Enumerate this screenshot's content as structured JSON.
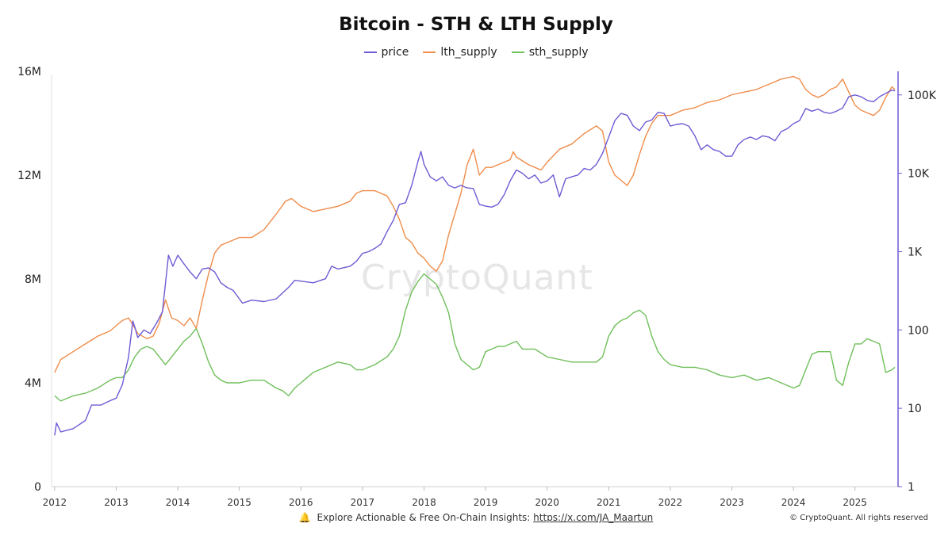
{
  "colors": {
    "price": "#6e5bd4",
    "lth_supply": "#ef8c4a",
    "sth_supply": "#6fbf5a"
  },
  "watermark": "CryptoQuant",
  "footer": {
    "icon": "bell-icon",
    "text": "Explore Actionable & Free On-Chain Insights: ",
    "link": "https://x.com/JA_Maartun"
  },
  "copyright": "© CryptoQuant. All rights reserved",
  "chart_data": {
    "type": "line",
    "title": "Bitcoin - STH & LTH Supply",
    "legend": [
      "price",
      "lth_supply",
      "sth_supply"
    ],
    "legend_position": "top-center",
    "grid": false,
    "x_ticks": [
      "2012",
      "2013",
      "2014",
      "2015",
      "2016",
      "2017",
      "2018",
      "2019",
      "2020",
      "2021",
      "2022",
      "2023",
      "2024",
      "2025"
    ],
    "xlim": [
      2011.95,
      2025.7
    ],
    "left_axis": {
      "ticks": [
        "0",
        "4M",
        "8M",
        "12M",
        "16M"
      ],
      "tick_values": [
        0,
        4000000,
        8000000,
        12000000,
        16000000
      ],
      "ylim": [
        0,
        16000000
      ]
    },
    "right_axis": {
      "scale": "log",
      "ticks": [
        "1",
        "10",
        "100",
        "1K",
        "10K",
        "100K"
      ],
      "tick_values": [
        1,
        10,
        100,
        1000,
        10000,
        100000
      ],
      "ylim": [
        1,
        200000
      ]
    },
    "series": [
      {
        "name": "price",
        "axis": "right",
        "x": [
          2012.0,
          2012.03,
          2012.1,
          2012.3,
          2012.5,
          2012.6,
          2012.75,
          2012.9,
          2013.0,
          2013.1,
          2013.2,
          2013.27,
          2013.3,
          2013.35,
          2013.45,
          2013.55,
          2013.65,
          2013.75,
          2013.85,
          2013.92,
          2014.0,
          2014.1,
          2014.2,
          2014.3,
          2014.4,
          2014.5,
          2014.6,
          2014.7,
          2014.8,
          2014.9,
          2015.0,
          2015.05,
          2015.2,
          2015.4,
          2015.6,
          2015.8,
          2015.9,
          2016.0,
          2016.2,
          2016.4,
          2016.5,
          2016.6,
          2016.8,
          2016.9,
          2017.0,
          2017.1,
          2017.2,
          2017.3,
          2017.4,
          2017.5,
          2017.6,
          2017.7,
          2017.8,
          2017.9,
          2017.95,
          2018.0,
          2018.1,
          2018.2,
          2018.3,
          2018.4,
          2018.5,
          2018.6,
          2018.7,
          2018.8,
          2018.9,
          2019.0,
          2019.1,
          2019.2,
          2019.3,
          2019.4,
          2019.5,
          2019.6,
          2019.7,
          2019.8,
          2019.9,
          2020.0,
          2020.1,
          2020.2,
          2020.3,
          2020.4,
          2020.5,
          2020.6,
          2020.7,
          2020.8,
          2020.9,
          2021.0,
          2021.1,
          2021.2,
          2021.3,
          2021.4,
          2021.5,
          2021.6,
          2021.7,
          2021.8,
          2021.9,
          2022.0,
          2022.1,
          2022.2,
          2022.3,
          2022.4,
          2022.5,
          2022.6,
          2022.7,
          2022.8,
          2022.9,
          2023.0,
          2023.1,
          2023.2,
          2023.3,
          2023.4,
          2023.5,
          2023.6,
          2023.7,
          2023.8,
          2023.9,
          2024.0,
          2024.1,
          2024.2,
          2024.3,
          2024.4,
          2024.5,
          2024.6,
          2024.7,
          2024.8,
          2024.9,
          2025.0,
          2025.1,
          2025.2,
          2025.3,
          2025.4,
          2025.5,
          2025.6,
          2025.65
        ],
        "values": [
          4.5,
          6.5,
          5,
          5.5,
          7,
          11,
          11,
          12.5,
          13.5,
          20,
          45,
          130,
          110,
          80,
          100,
          90,
          120,
          170,
          900,
          650,
          900,
          700,
          550,
          450,
          600,
          620,
          550,
          400,
          350,
          320,
          250,
          220,
          240,
          230,
          250,
          350,
          430,
          420,
          400,
          450,
          650,
          600,
          650,
          750,
          950,
          1000,
          1100,
          1250,
          1800,
          2500,
          4000,
          4200,
          7000,
          14000,
          19000,
          13000,
          9000,
          8000,
          9000,
          7000,
          6500,
          7000,
          6500,
          6400,
          4000,
          3800,
          3700,
          4000,
          5300,
          8000,
          11000,
          10000,
          8500,
          9500,
          7500,
          8000,
          9500,
          5000,
          8500,
          9000,
          9500,
          11500,
          11000,
          13000,
          18000,
          29000,
          47000,
          58000,
          55000,
          40000,
          35000,
          45000,
          48000,
          60000,
          58000,
          40000,
          42000,
          43000,
          40000,
          30000,
          20000,
          23000,
          20000,
          19000,
          16500,
          16500,
          23000,
          27000,
          29000,
          27000,
          30000,
          29000,
          26000,
          34000,
          37000,
          43000,
          47000,
          67000,
          62000,
          66000,
          60000,
          58000,
          62000,
          68000,
          95000,
          100000,
          95000,
          85000,
          82000,
          95000,
          105000,
          115000,
          113000
        ]
      },
      {
        "name": "lth_supply",
        "axis": "left",
        "x": [
          2012.0,
          2012.1,
          2012.3,
          2012.5,
          2012.7,
          2012.9,
          2013.0,
          2013.1,
          2013.2,
          2013.28,
          2013.35,
          2013.5,
          2013.6,
          2013.7,
          2013.8,
          2013.9,
          2014.0,
          2014.1,
          2014.2,
          2014.3,
          2014.4,
          2014.5,
          2014.6,
          2014.7,
          2014.8,
          2014.9,
          2015.0,
          2015.2,
          2015.4,
          2015.6,
          2015.75,
          2015.85,
          2016.0,
          2016.2,
          2016.4,
          2016.6,
          2016.8,
          2016.9,
          2017.0,
          2017.2,
          2017.4,
          2017.5,
          2017.6,
          2017.7,
          2017.8,
          2017.9,
          2018.0,
          2018.1,
          2018.2,
          2018.3,
          2018.4,
          2018.5,
          2018.6,
          2018.7,
          2018.8,
          2018.9,
          2019.0,
          2019.1,
          2019.2,
          2019.3,
          2019.4,
          2019.45,
          2019.5,
          2019.7,
          2019.8,
          2019.9,
          2020.0,
          2020.2,
          2020.4,
          2020.6,
          2020.8,
          2020.9,
          2021.0,
          2021.1,
          2021.2,
          2021.3,
          2021.4,
          2021.5,
          2021.6,
          2021.7,
          2021.8,
          2021.9,
          2022.0,
          2022.2,
          2022.4,
          2022.6,
          2022.8,
          2023.0,
          2023.2,
          2023.4,
          2023.6,
          2023.8,
          2024.0,
          2024.1,
          2024.2,
          2024.3,
          2024.4,
          2024.5,
          2024.6,
          2024.7,
          2024.8,
          2024.9,
          2025.0,
          2025.1,
          2025.2,
          2025.3,
          2025.4,
          2025.5,
          2025.6,
          2025.65
        ],
        "values": [
          4400000,
          4900000,
          5200000,
          5500000,
          5800000,
          6000000,
          6200000,
          6400000,
          6500000,
          6200000,
          5900000,
          5700000,
          5800000,
          6300000,
          7200000,
          6500000,
          6400000,
          6200000,
          6500000,
          6100000,
          7200000,
          8200000,
          9000000,
          9300000,
          9400000,
          9500000,
          9600000,
          9600000,
          9900000,
          10500000,
          11000000,
          11100000,
          10800000,
          10600000,
          10700000,
          10800000,
          11000000,
          11300000,
          11400000,
          11400000,
          11200000,
          10800000,
          10300000,
          9600000,
          9400000,
          9000000,
          8800000,
          8500000,
          8300000,
          8700000,
          9700000,
          10500000,
          11300000,
          12400000,
          13000000,
          12000000,
          12300000,
          12300000,
          12400000,
          12500000,
          12600000,
          12900000,
          12700000,
          12400000,
          12300000,
          12200000,
          12500000,
          13000000,
          13200000,
          13600000,
          13900000,
          13700000,
          12500000,
          12000000,
          11800000,
          11600000,
          12000000,
          12800000,
          13500000,
          14000000,
          14300000,
          14300000,
          14300000,
          14500000,
          14600000,
          14800000,
          14900000,
          15100000,
          15200000,
          15300000,
          15500000,
          15700000,
          15800000,
          15700000,
          15300000,
          15100000,
          15000000,
          15100000,
          15300000,
          15400000,
          15700000,
          15200000,
          14700000,
          14500000,
          14400000,
          14300000,
          14500000,
          15000000,
          15400000,
          15300000
        ]
      },
      {
        "name": "sth_supply",
        "axis": "left",
        "x": [
          2012.0,
          2012.1,
          2012.3,
          2012.5,
          2012.7,
          2012.9,
          2013.0,
          2013.1,
          2013.2,
          2013.3,
          2013.4,
          2013.5,
          2013.6,
          2013.7,
          2013.8,
          2013.9,
          2014.0,
          2014.1,
          2014.2,
          2014.3,
          2014.4,
          2014.5,
          2014.6,
          2014.7,
          2014.8,
          2015.0,
          2015.2,
          2015.4,
          2015.6,
          2015.7,
          2015.8,
          2015.9,
          2016.0,
          2016.2,
          2016.4,
          2016.6,
          2016.8,
          2016.9,
          2017.0,
          2017.2,
          2017.4,
          2017.5,
          2017.6,
          2017.7,
          2017.8,
          2017.9,
          2018.0,
          2018.1,
          2018.2,
          2018.3,
          2018.4,
          2018.5,
          2018.6,
          2018.7,
          2018.8,
          2018.9,
          2019.0,
          2019.1,
          2019.2,
          2019.3,
          2019.4,
          2019.5,
          2019.6,
          2019.8,
          2020.0,
          2020.2,
          2020.4,
          2020.6,
          2020.8,
          2020.9,
          2021.0,
          2021.1,
          2021.2,
          2021.3,
          2021.4,
          2021.5,
          2021.6,
          2021.7,
          2021.8,
          2021.9,
          2022.0,
          2022.2,
          2022.4,
          2022.6,
          2022.8,
          2023.0,
          2023.2,
          2023.4,
          2023.6,
          2023.8,
          2024.0,
          2024.1,
          2024.2,
          2024.3,
          2024.4,
          2024.5,
          2024.6,
          2024.7,
          2024.8,
          2024.9,
          2025.0,
          2025.1,
          2025.2,
          2025.3,
          2025.4,
          2025.5,
          2025.6,
          2025.65
        ],
        "values": [
          3500000,
          3300000,
          3500000,
          3600000,
          3800000,
          4100000,
          4200000,
          4200000,
          4500000,
          5000000,
          5300000,
          5400000,
          5300000,
          5000000,
          4700000,
          5000000,
          5300000,
          5600000,
          5800000,
          6100000,
          5500000,
          4800000,
          4300000,
          4100000,
          4000000,
          4000000,
          4100000,
          4100000,
          3800000,
          3700000,
          3500000,
          3800000,
          4000000,
          4400000,
          4600000,
          4800000,
          4700000,
          4500000,
          4500000,
          4700000,
          5000000,
          5300000,
          5800000,
          6800000,
          7500000,
          7900000,
          8200000,
          8000000,
          7800000,
          7300000,
          6700000,
          5500000,
          4900000,
          4700000,
          4500000,
          4600000,
          5200000,
          5300000,
          5400000,
          5400000,
          5500000,
          5600000,
          5300000,
          5300000,
          5000000,
          4900000,
          4800000,
          4800000,
          4800000,
          5000000,
          5800000,
          6200000,
          6400000,
          6500000,
          6700000,
          6800000,
          6600000,
          5800000,
          5200000,
          4900000,
          4700000,
          4600000,
          4600000,
          4500000,
          4300000,
          4200000,
          4300000,
          4100000,
          4200000,
          4000000,
          3800000,
          3900000,
          4500000,
          5100000,
          5200000,
          5200000,
          5200000,
          4100000,
          3900000,
          4800000,
          5500000,
          5500000,
          5700000,
          5600000,
          5500000,
          4400000,
          4500000,
          4600000
        ]
      }
    ]
  }
}
